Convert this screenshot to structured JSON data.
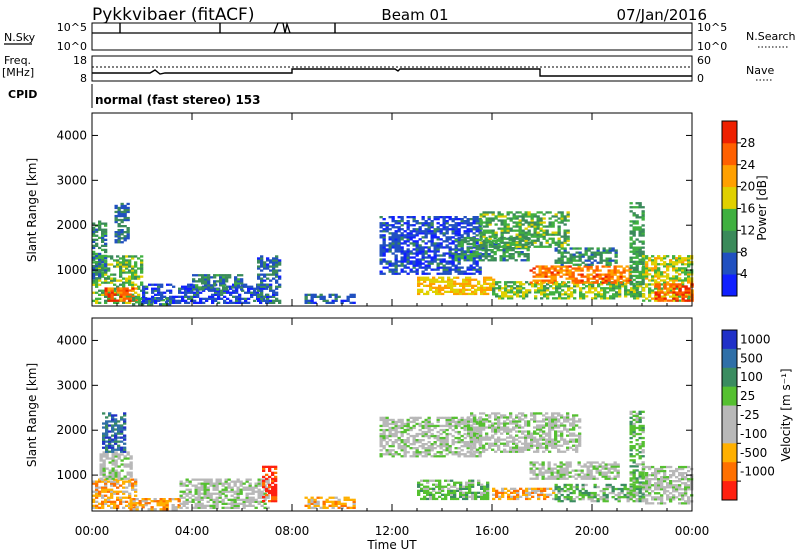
{
  "header": {
    "station": "Pykkvibaer (fitACF)",
    "beam": "Beam 01",
    "date": "07/Jan/2016"
  },
  "panels": {
    "nsky": {
      "left_label": "N.Sky",
      "right_label": "N.Search",
      "left_ticks": [
        "10^5",
        "10^0"
      ],
      "right_ticks": [
        "10^5",
        "10^0"
      ]
    },
    "freq": {
      "left_label_1": "Freq.",
      "left_label_2": "[MHz]",
      "right_label": "Nave",
      "left_ticks": [
        "18",
        "8"
      ],
      "right_ticks": [
        "60",
        "0"
      ]
    },
    "cpid": {
      "label": "CPID",
      "text": "normal (fast stereo) 153"
    }
  },
  "colors": {
    "power": [
      "#1020ff",
      "#2050c0",
      "#3a8a5a",
      "#40b040",
      "#e0d000",
      "#ffa000",
      "#ff6000",
      "#ee2000"
    ],
    "velocity": [
      "#2030c8",
      "#2f6fa8",
      "#3a8c60",
      "#55c030",
      "#b8b8b8",
      "#b8b8b8",
      "#ffb000",
      "#ff7000",
      "#ff2010"
    ]
  },
  "chart_data": [
    {
      "type": "heatmap",
      "name": "power",
      "ylabel": "Slant Range [km]",
      "xlabel": "",
      "xlim": [
        0,
        24
      ],
      "ylim": [
        200,
        4500
      ],
      "x_ticks": [
        "00:00",
        "04:00",
        "08:00",
        "12:00",
        "16:00",
        "20:00",
        "00:00"
      ],
      "y_ticks": [
        1000,
        2000,
        3000,
        4000
      ],
      "colorbar": {
        "label": "Power [dB]",
        "ticks": [
          "4",
          "8",
          "12",
          "16",
          "20",
          "24",
          "28"
        ],
        "range": [
          0,
          30
        ]
      },
      "blobs": [
        {
          "t0": 0.0,
          "t1": 2.0,
          "r0": 250,
          "r1": 1300,
          "v": 14
        },
        {
          "t0": 0.5,
          "t1": 1.8,
          "r0": 300,
          "r1": 600,
          "v": 26
        },
        {
          "t0": 0.0,
          "t1": 0.6,
          "r0": 800,
          "r1": 2100,
          "v": 10
        },
        {
          "t0": 0.9,
          "t1": 1.4,
          "r0": 1600,
          "r1": 2500,
          "v": 8
        },
        {
          "t0": 1.6,
          "t1": 3.2,
          "r0": 220,
          "r1": 400,
          "v": 11
        },
        {
          "t0": 2.0,
          "t1": 7.0,
          "r0": 250,
          "r1": 700,
          "v": 5
        },
        {
          "t0": 4.0,
          "t1": 6.0,
          "r0": 550,
          "r1": 900,
          "v": 9
        },
        {
          "t0": 6.6,
          "t1": 7.5,
          "r0": 250,
          "r1": 1300,
          "v": 7
        },
        {
          "t0": 8.5,
          "t1": 10.5,
          "r0": 250,
          "r1": 450,
          "v": 6
        },
        {
          "t0": 11.5,
          "t1": 15.5,
          "r0": 900,
          "r1": 2200,
          "v": 5
        },
        {
          "t0": 13.0,
          "t1": 16.0,
          "r0": 450,
          "r1": 850,
          "v": 20
        },
        {
          "t0": 14.5,
          "t1": 17.5,
          "r0": 1200,
          "r1": 1700,
          "v": 11
        },
        {
          "t0": 15.5,
          "t1": 19.0,
          "r0": 1500,
          "r1": 2300,
          "v": 13
        },
        {
          "t0": 16.0,
          "t1": 22.0,
          "r0": 350,
          "r1": 750,
          "v": 15
        },
        {
          "t0": 17.5,
          "t1": 21.5,
          "r0": 700,
          "r1": 1100,
          "v": 25
        },
        {
          "t0": 18.5,
          "t1": 21.0,
          "r0": 1100,
          "r1": 1500,
          "v": 10
        },
        {
          "t0": 21.5,
          "t1": 22.0,
          "r0": 400,
          "r1": 2500,
          "v": 12
        },
        {
          "t0": 22.0,
          "t1": 24.0,
          "r0": 300,
          "r1": 1300,
          "v": 17
        },
        {
          "t0": 22.5,
          "t1": 24.0,
          "r0": 300,
          "r1": 700,
          "v": 27
        }
      ]
    },
    {
      "type": "heatmap",
      "name": "velocity",
      "ylabel": "Slant Range [km]",
      "xlabel": "Time UT",
      "xlim": [
        0,
        24
      ],
      "ylim": [
        200,
        4500
      ],
      "x_ticks": [
        "00:00",
        "04:00",
        "08:00",
        "12:00",
        "16:00",
        "20:00",
        "00:00"
      ],
      "y_ticks": [
        1000,
        2000,
        3000,
        4000
      ],
      "colorbar": {
        "label": "Velocity [m s⁻¹]",
        "ticks": [
          "1000",
          "500",
          "100",
          "25",
          "-25",
          "-100",
          "-500",
          "-1000"
        ]
      },
      "blobs": [
        {
          "t0": 0.0,
          "t1": 1.8,
          "r0": 250,
          "r1": 900,
          "v": 6
        },
        {
          "t0": 0.3,
          "t1": 1.6,
          "r0": 900,
          "r1": 1500,
          "v": 4
        },
        {
          "t0": 0.4,
          "t1": 1.3,
          "r0": 1500,
          "r1": 2400,
          "v": 1
        },
        {
          "t0": 1.5,
          "t1": 3.5,
          "r0": 220,
          "r1": 450,
          "v": 6
        },
        {
          "t0": 3.5,
          "t1": 7.0,
          "r0": 250,
          "r1": 900,
          "v": 4
        },
        {
          "t0": 6.8,
          "t1": 7.4,
          "r0": 400,
          "r1": 1200,
          "v": 8
        },
        {
          "t0": 8.5,
          "t1": 10.5,
          "r0": 250,
          "r1": 500,
          "v": 6
        },
        {
          "t0": 11.5,
          "t1": 15.5,
          "r0": 1400,
          "r1": 2300,
          "v": 4
        },
        {
          "t0": 13.0,
          "t1": 15.8,
          "r0": 450,
          "r1": 900,
          "v": 3
        },
        {
          "t0": 15.0,
          "t1": 19.5,
          "r0": 1500,
          "r1": 2400,
          "v": 4
        },
        {
          "t0": 16.0,
          "t1": 18.5,
          "r0": 450,
          "r1": 700,
          "v": 6
        },
        {
          "t0": 18.5,
          "t1": 22.0,
          "r0": 400,
          "r1": 800,
          "v": 3
        },
        {
          "t0": 17.5,
          "t1": 21.0,
          "r0": 900,
          "r1": 1300,
          "v": 4
        },
        {
          "t0": 21.5,
          "t1": 22.0,
          "r0": 500,
          "r1": 2400,
          "v": 3
        },
        {
          "t0": 22.0,
          "t1": 24.0,
          "r0": 350,
          "r1": 1200,
          "v": 4
        }
      ]
    }
  ]
}
